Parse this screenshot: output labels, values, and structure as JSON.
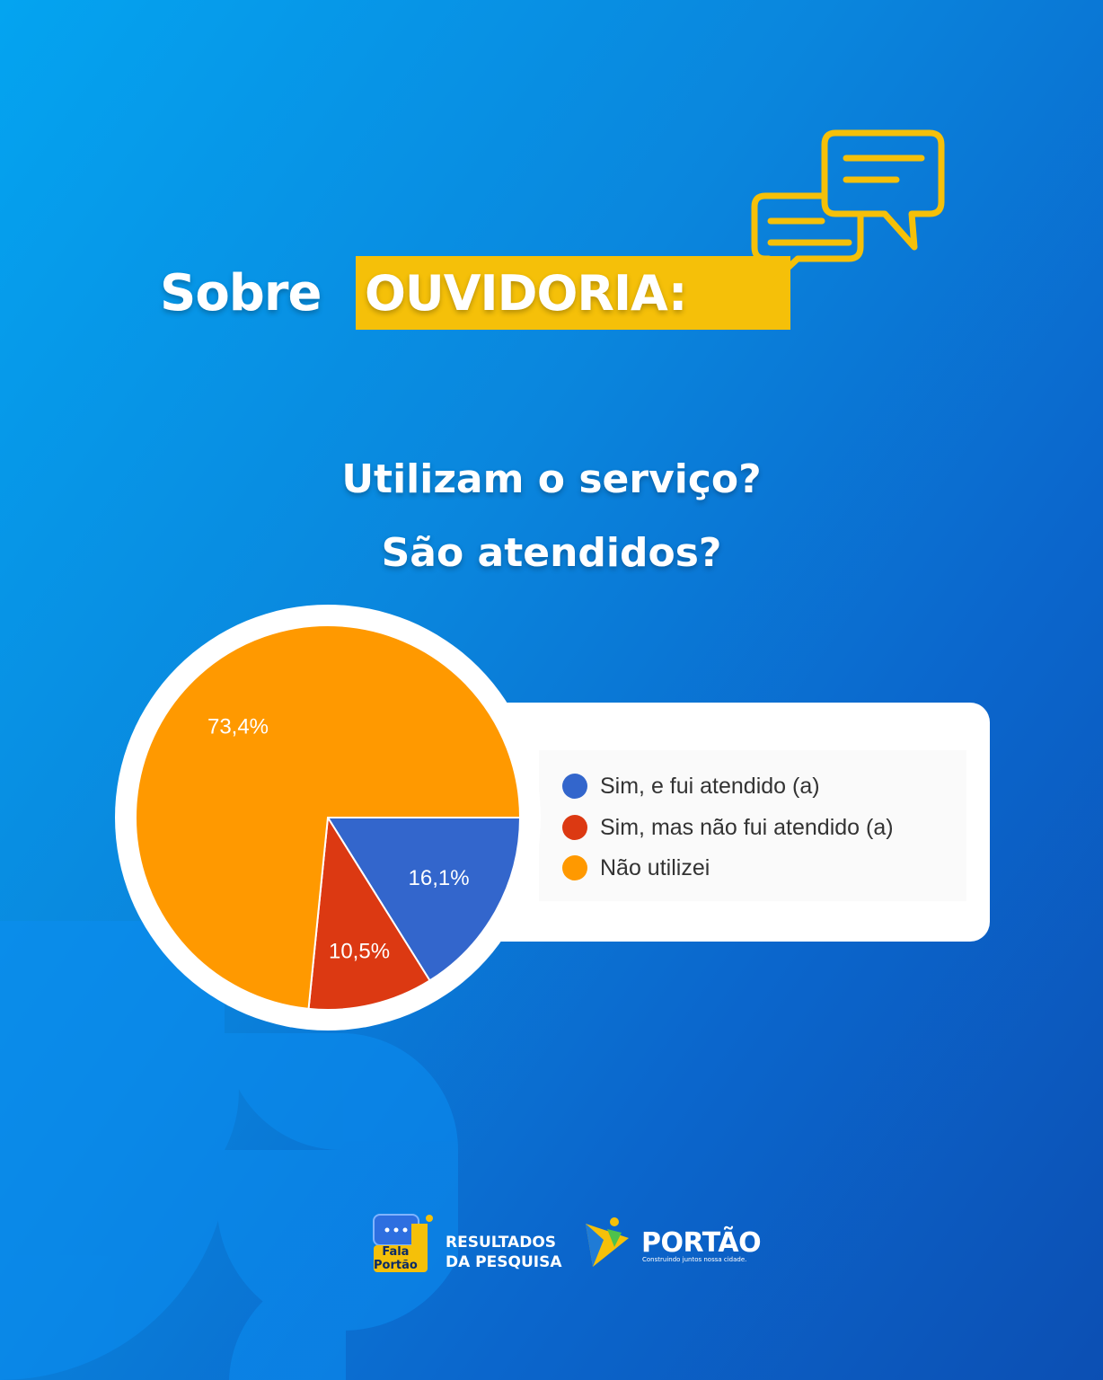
{
  "header": {
    "title_prefix": "Sobre",
    "title_highlight": "OUVIDORIA:",
    "question_line1": "Utilizam o serviço?",
    "question_line2": "São atendidos?"
  },
  "chart_data": {
    "type": "pie",
    "title": "",
    "slices": [
      {
        "label": "Sim, e fui atendido (a)",
        "value": 16.1,
        "display": "16,1%",
        "color": "#3366cc"
      },
      {
        "label": "Sim, mas não fui atendido (a)",
        "value": 10.5,
        "display": "10,5%",
        "color": "#dc3912"
      },
      {
        "label": "Não utilizei",
        "value": 73.4,
        "display": "73,4%",
        "color": "#ff9900"
      }
    ],
    "legend_position": "right"
  },
  "legend": {
    "items": [
      {
        "label": "Sim, e fui atendido (a)",
        "color": "#3366cc"
      },
      {
        "label": "Sim, mas não fui atendido (a)",
        "color": "#dc3912"
      },
      {
        "label": "Não utilizei",
        "color": "#ff9900"
      }
    ]
  },
  "footer": {
    "fala_logo_line1": "Fala",
    "fala_logo_line2": "Portão",
    "results_line1": "RESULTADOS",
    "results_line2": "DA PESQUISA",
    "portao_name": "PORTÃO",
    "portao_tagline": "Construindo juntos nossa cidade."
  },
  "colors": {
    "accent_yellow": "#f5c009",
    "background_start": "#04a4f0",
    "background_end": "#0c4fb3"
  },
  "icons": [
    "chat-bubbles-icon",
    "fala-portao-logo-icon",
    "portao-star-logo-icon"
  ]
}
